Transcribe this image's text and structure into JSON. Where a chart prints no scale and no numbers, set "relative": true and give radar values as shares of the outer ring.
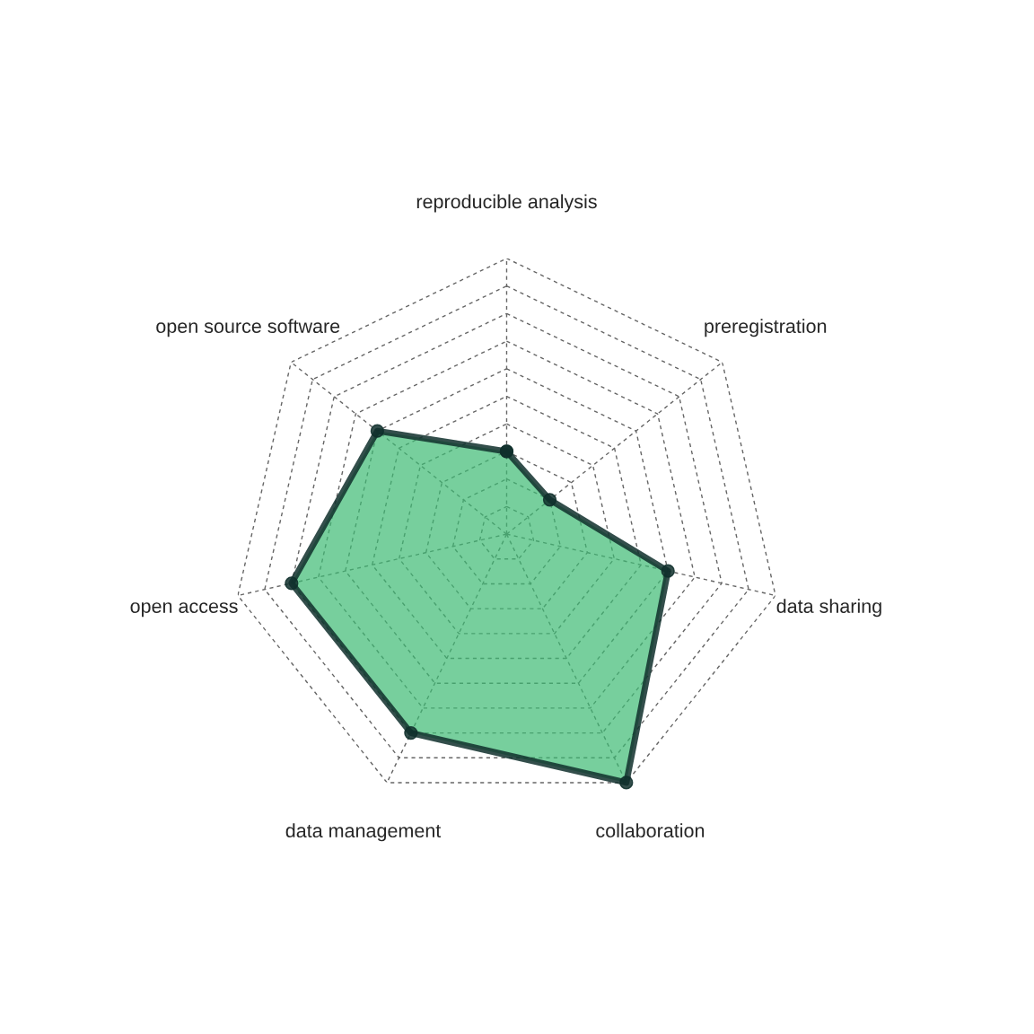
{
  "chart_data": {
    "type": "radar",
    "relative": true,
    "grid": true,
    "marker": "circle",
    "line_style": "solid",
    "categories": [
      "reproducible analysis",
      "preregistration",
      "data sharing",
      "collaboration",
      "data management",
      "open access",
      "open source software"
    ],
    "series": [
      {
        "color": "#3dbb74",
        "values": [
          0.3,
          0.2,
          0.6,
          1.0,
          0.8,
          0.8,
          0.6
        ]
      }
    ]
  }
}
